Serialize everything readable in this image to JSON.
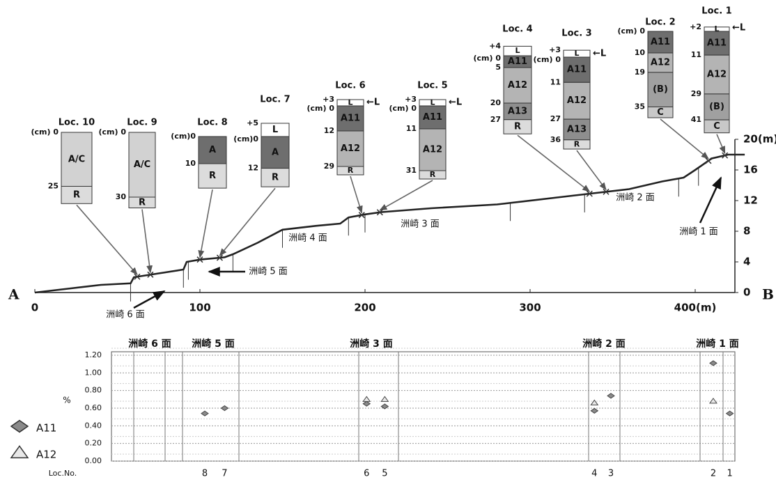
{
  "chart_data": [
    {
      "type": "profile",
      "x": [
        0,
        20,
        40,
        58,
        60,
        75,
        90,
        92,
        100,
        115,
        120,
        135,
        150,
        170,
        185,
        190,
        200,
        210,
        240,
        280,
        320,
        340,
        360,
        380,
        393,
        400,
        410,
        420,
        430
      ],
      "values": [
        0,
        0.5,
        1,
        1.2,
        2,
        2.5,
        3,
        4,
        4.3,
        4.6,
        5,
        6.5,
        8.2,
        8.7,
        9,
        9.8,
        10.2,
        10.5,
        11,
        11.5,
        12.5,
        13,
        13.5,
        14.5,
        15,
        16,
        17.5,
        18,
        18
      ],
      "xlim": [
        0,
        430
      ],
      "xticks": [
        0,
        100,
        200,
        300,
        {
          "value": 400,
          "label": "400(m)"
        }
      ],
      "y2lim": [
        0,
        20
      ],
      "y2ticks": [
        0,
        4,
        8,
        12,
        16,
        {
          "value": 20,
          "label": "20(m)"
        }
      ],
      "end_labels": [
        "A",
        "B"
      ],
      "surfaces": [
        "洲崎 1 面",
        "洲崎 2 面",
        "洲崎 3 面",
        "洲崎 4 面",
        "洲崎 5 面",
        "洲崎 6 面"
      ],
      "horizon_colors": {
        "L": "#ffffff",
        "A": "#6e6e6e",
        "A11": "#6e6e6e",
        "A12": "#b4b4b4",
        "A13": "#8e8e8e",
        "(B)": "#a0a0a0",
        "C": "#c8c8c8",
        "R": "#dcdcdc",
        "A/C": "#d2d2d2"
      },
      "locs": [
        {
          "label": "Loc. 1",
          "distance_m": 418,
          "top": {
            "value": 2,
            "label": "+2"
          },
          "l_marker": "←L",
          "depth_ticks": [
            11,
            29,
            41
          ],
          "horizons": [
            {
              "name": "L",
              "from": -2,
              "to": 0
            },
            {
              "name": "A11",
              "from": 0,
              "to": 11
            },
            {
              "name": "A12",
              "from": 11,
              "to": 29
            },
            {
              "name": "(B)",
              "from": 29,
              "to": 41
            },
            {
              "name": "C",
              "from": 41,
              "to": 47
            }
          ]
        },
        {
          "label": "Loc. 2",
          "distance_m": 408,
          "depth_ticks": [
            {
              "value": 0,
              "label": "(cm) 0"
            },
            10,
            19,
            35
          ],
          "horizons": [
            {
              "name": "A11",
              "from": 0,
              "to": 10
            },
            {
              "name": "A12",
              "from": 10,
              "to": 19
            },
            {
              "name": "(B)",
              "from": 19,
              "to": 35
            },
            {
              "name": "C",
              "from": 35,
              "to": 40
            }
          ]
        },
        {
          "label": "Loc. 3",
          "distance_m": 346,
          "top": {
            "value": 3,
            "label": "+3"
          },
          "l_marker": "←L",
          "depth_ticks": [
            {
              "value": 0,
              "label": "(cm) 0"
            },
            11,
            27,
            36
          ],
          "horizons": [
            {
              "name": "L",
              "from": -3,
              "to": 0
            },
            {
              "name": "A11",
              "from": 0,
              "to": 11
            },
            {
              "name": "A12",
              "from": 11,
              "to": 27
            },
            {
              "name": "A13",
              "from": 27,
              "to": 36
            },
            {
              "name": "R",
              "from": 36,
              "to": 40
            }
          ]
        },
        {
          "label": "Loc. 4",
          "distance_m": 336,
          "top": {
            "value": 4,
            "label": "+4"
          },
          "depth_ticks": [
            {
              "value": 0,
              "label": "(cm) 0"
            },
            5,
            20,
            27
          ],
          "horizons": [
            {
              "name": "L",
              "from": -4,
              "to": 0
            },
            {
              "name": "A11",
              "from": 0,
              "to": 5
            },
            {
              "name": "A12",
              "from": 5,
              "to": 20
            },
            {
              "name": "A13",
              "from": 20,
              "to": 27
            },
            {
              "name": "R",
              "from": 27,
              "to": 33
            }
          ]
        },
        {
          "label": "Loc. 5",
          "distance_m": 209,
          "top": {
            "value": 3,
            "label": "+3"
          },
          "l_marker": "←L",
          "depth_ticks": [
            {
              "value": 0,
              "label": "(cm) 0"
            },
            11,
            31
          ],
          "horizons": [
            {
              "name": "L",
              "from": -3,
              "to": 0
            },
            {
              "name": "A11",
              "from": 0,
              "to": 11
            },
            {
              "name": "A12",
              "from": 11,
              "to": 31
            },
            {
              "name": "R",
              "from": 31,
              "to": 35
            }
          ]
        },
        {
          "label": "Loc. 6",
          "distance_m": 198,
          "top": {
            "value": 3,
            "label": "+3"
          },
          "l_marker": "←L",
          "depth_ticks": [
            {
              "value": 0,
              "label": "(cm) 0"
            },
            12,
            29
          ],
          "horizons": [
            {
              "name": "L",
              "from": -3,
              "to": 0
            },
            {
              "name": "A11",
              "from": 0,
              "to": 12
            },
            {
              "name": "A12",
              "from": 12,
              "to": 29
            },
            {
              "name": "R",
              "from": 29,
              "to": 33
            }
          ]
        },
        {
          "label": "Loc. 7",
          "distance_m": 112,
          "top": {
            "value": 5,
            "label": "+5"
          },
          "depth_ticks": [
            {
              "value": 0,
              "label": "(cm)0"
            },
            12
          ],
          "horizons": [
            {
              "name": "L",
              "from": -5,
              "to": 0
            },
            {
              "name": "A",
              "from": 0,
              "to": 12
            },
            {
              "name": "R",
              "from": 12,
              "to": 19
            }
          ]
        },
        {
          "label": "Loc. 8",
          "distance_m": 100,
          "depth_ticks": [
            {
              "value": 0,
              "label": "(cm)0"
            },
            10
          ],
          "horizons": [
            {
              "name": "A",
              "from": 0,
              "to": 10
            },
            {
              "name": "R",
              "from": 10,
              "to": 19
            }
          ]
        },
        {
          "label": "Loc. 9",
          "distance_m": 70,
          "depth_ticks": [
            {
              "value": 0,
              "label": "(cm) 0"
            },
            30
          ],
          "horizons": [
            {
              "name": "A/C",
              "from": 0,
              "to": 30
            },
            {
              "name": "R",
              "from": 30,
              "to": 35
            }
          ]
        },
        {
          "label": "Loc. 10",
          "distance_m": 62,
          "depth_ticks": [
            {
              "value": 0,
              "label": "(cm) 0"
            },
            25
          ],
          "horizons": [
            {
              "name": "A/C",
              "from": 0,
              "to": 25
            },
            {
              "name": "R",
              "from": 25,
              "to": 33
            }
          ]
        }
      ]
    },
    {
      "type": "scatter",
      "ylabel": "%",
      "xlabel": "Loc.No.",
      "headers": [
        "洲崎 6 面",
        "洲崎 5 面",
        "洲崎 3 面",
        "洲崎 2 面",
        "洲崎 1 面"
      ],
      "categories": [
        "8",
        "7",
        "6",
        "5",
        "4",
        "3",
        "2",
        "1"
      ],
      "ylim": [
        0,
        1.2
      ],
      "yticks": [
        {
          "value": 0,
          "label": "0.00"
        },
        {
          "value": 0.2,
          "label": "0.20"
        },
        {
          "value": 0.4,
          "label": "0.40"
        },
        {
          "value": 0.6,
          "label": "0.60"
        },
        {
          "value": 0.8,
          "label": "0.80"
        },
        {
          "value": 1,
          "label": "1.00"
        },
        {
          "value": 1.2,
          "label": "1.20"
        }
      ],
      "series": [
        {
          "name": "A11",
          "marker": "diamond",
          "color": "#8a8a8a",
          "values": [
            0.54,
            0.6,
            0.65,
            0.62,
            0.57,
            0.74,
            1.11,
            0.54
          ]
        },
        {
          "name": "A12",
          "marker": "triangle",
          "color": "#e8e8e8",
          "values": [
            null,
            null,
            0.7,
            0.7,
            0.66,
            null,
            0.68,
            null
          ]
        }
      ]
    }
  ]
}
